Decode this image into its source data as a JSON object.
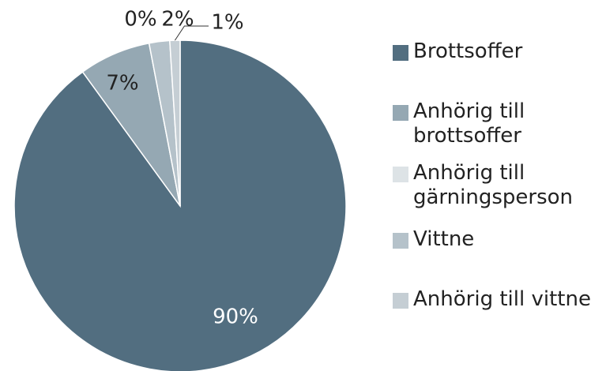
{
  "chart_data": {
    "type": "pie",
    "categories": [
      "Brottsoffer",
      "Anhörig till brottsoffer",
      "Anhörig till gärningsperson",
      "Vittne",
      "Anhörig till vittne"
    ],
    "values": [
      90,
      7,
      0,
      2,
      1
    ],
    "value_labels": [
      "90%",
      "7%",
      "0%",
      "2%",
      "1%"
    ],
    "colors": [
      "#526e80",
      "#95a8b3",
      "#dde3e6",
      "#b5c2ca",
      "#c5ced4"
    ],
    "legend": "right"
  }
}
